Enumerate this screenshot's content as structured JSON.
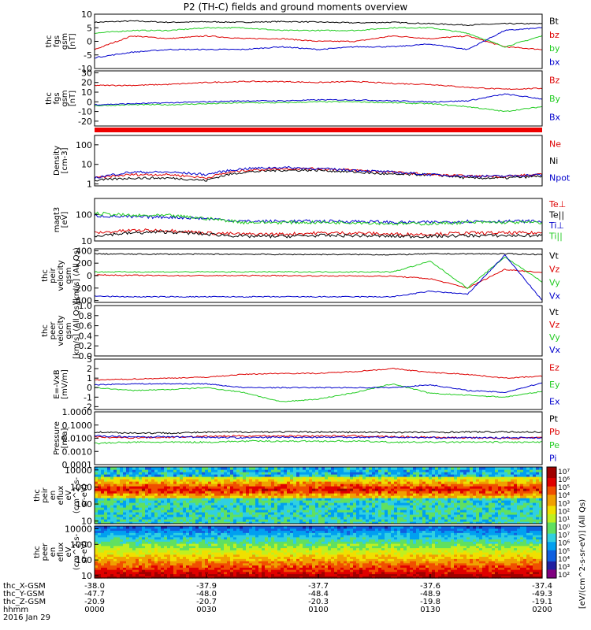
{
  "title": "P2 (TH-C) fields and ground moments overview",
  "colors": {
    "black": "#000000",
    "red": "#dd0000",
    "green": "#22cc22",
    "blue": "#0000cc"
  },
  "panels": [
    {
      "id": "fgs",
      "ylabel": [
        "thc",
        "fgs",
        "gsm",
        "[nT]"
      ],
      "ticks": [
        "10",
        "5",
        "0",
        "-5",
        "-10"
      ],
      "tick_values": [
        10,
        5,
        0,
        -5,
        -10
      ],
      "ylim": [
        -10,
        10
      ],
      "legend": [
        {
          "text": "Bt",
          "color": "#000000"
        },
        {
          "text": "bz",
          "color": "#dd0000"
        },
        {
          "text": "by",
          "color": "#22cc22"
        },
        {
          "text": "bx",
          "color": "#0000cc"
        }
      ],
      "series": [
        {
          "name": "Bt",
          "color": "#000000",
          "values": [
            7,
            7.5,
            7,
            7.2,
            7,
            7.3,
            7.1,
            6.8,
            7,
            6.5,
            6,
            6.5,
            6.5
          ]
        },
        {
          "name": "bz",
          "color": "#dd0000",
          "values": [
            -3,
            2,
            1,
            2,
            1,
            1,
            0,
            0,
            2,
            1,
            2,
            -2,
            -3
          ]
        },
        {
          "name": "by",
          "color": "#22cc22",
          "values": [
            3,
            4,
            4,
            5,
            5,
            4,
            4,
            4,
            5,
            5,
            3,
            -2,
            2
          ]
        },
        {
          "name": "bx",
          "color": "#0000cc",
          "values": [
            -6,
            -4,
            -3,
            -3,
            -3,
            -2,
            -3,
            -2,
            -2,
            -1,
            -3,
            4,
            5
          ]
        }
      ]
    },
    {
      "id": "fgs2",
      "ylabel": [
        "thc",
        "fgs",
        "gsm",
        "[nT]"
      ],
      "ticks": [
        "30",
        "20",
        "10",
        "0",
        "-10",
        "-20"
      ],
      "tick_values": [
        30,
        20,
        10,
        0,
        -10,
        -20
      ],
      "ylim": [
        -25,
        32
      ],
      "legend": [
        {
          "text": "Bz",
          "color": "#dd0000"
        },
        {
          "text": "By",
          "color": "#22cc22"
        },
        {
          "text": "Bx",
          "color": "#0000cc"
        }
      ],
      "series": [
        {
          "name": "Bz",
          "color": "#dd0000",
          "values": [
            17,
            17,
            18,
            20,
            21,
            21,
            20,
            21,
            19,
            18,
            15,
            13,
            14
          ]
        },
        {
          "name": "By",
          "color": "#22cc22",
          "values": [
            -4,
            -3,
            -3,
            -2,
            -1,
            -1,
            0,
            0,
            -1,
            -2,
            -5,
            -10,
            -5
          ]
        },
        {
          "name": "Bx",
          "color": "#0000cc",
          "values": [
            -3,
            -2,
            -1,
            0,
            1,
            1,
            2,
            2,
            1,
            0,
            1,
            8,
            3
          ]
        }
      ]
    },
    {
      "id": "density",
      "ylabel": [
        "Density",
        "[cm-3]"
      ],
      "ticks": [
        "100",
        "10",
        "1"
      ],
      "tick_values": [
        100,
        10,
        1
      ],
      "log": true,
      "ylim": [
        0.8,
        300
      ],
      "legend": [
        {
          "text": "Ne",
          "color": "#dd0000"
        },
        {
          "text": "Ni",
          "color": "#000000"
        },
        {
          "text": "Npot",
          "color": "#0000cc"
        }
      ],
      "series": [
        {
          "name": "Ni",
          "color": "#000000",
          "values": [
            1.5,
            2,
            2,
            1.5,
            4,
            5,
            5,
            4,
            3,
            3,
            2,
            2,
            2.5
          ]
        },
        {
          "name": "Ne",
          "color": "#dd0000",
          "values": [
            2,
            3,
            3,
            2,
            5,
            6,
            6,
            5,
            4,
            3,
            2.5,
            2.5,
            3
          ]
        },
        {
          "name": "Npot",
          "color": "#0000cc",
          "values": [
            2,
            4,
            4,
            3,
            6,
            7,
            6,
            5,
            4,
            3,
            2.5,
            2.5,
            3
          ]
        }
      ]
    },
    {
      "id": "temp",
      "ylabel": [
        "magt3",
        "[eV]"
      ],
      "ticks": [
        "100",
        "10"
      ],
      "tick_values": [
        100,
        10
      ],
      "log": true,
      "ylim": [
        10,
        400
      ],
      "legend": [
        {
          "text": "Te⊥",
          "color": "#dd0000"
        },
        {
          "text": "Te||",
          "color": "#000000"
        },
        {
          "text": "Ti⊥",
          "color": "#0000cc"
        },
        {
          "text": "Ti||",
          "color": "#22cc22"
        }
      ],
      "series": [
        {
          "name": "Te⊥",
          "color": "#dd0000",
          "values": [
            20,
            25,
            25,
            20,
            18,
            18,
            20,
            20,
            18,
            18,
            20,
            20,
            20
          ]
        },
        {
          "name": "Te||",
          "color": "#000000",
          "values": [
            16,
            20,
            22,
            18,
            15,
            15,
            16,
            16,
            15,
            15,
            16,
            16,
            16
          ]
        },
        {
          "name": "Ti⊥",
          "color": "#0000cc",
          "values": [
            90,
            80,
            80,
            70,
            55,
            55,
            55,
            55,
            50,
            50,
            55,
            55,
            55
          ]
        },
        {
          "name": "Ti||",
          "color": "#22cc22",
          "values": [
            110,
            90,
            90,
            70,
            50,
            50,
            50,
            50,
            45,
            45,
            50,
            50,
            50
          ]
        }
      ]
    },
    {
      "id": "peir",
      "ylabel": [
        "thc",
        "peir",
        "velocity",
        "gsm",
        "[km/s] (All Qs)"
      ],
      "ticks": [
        "400",
        "200",
        "0",
        "-200",
        "-400"
      ],
      "tick_values": [
        400,
        200,
        0,
        -200,
        -400
      ],
      "ylim": [
        -430,
        430
      ],
      "legend": [
        {
          "text": "Vt",
          "color": "#000000"
        },
        {
          "text": "Vz",
          "color": "#dd0000"
        },
        {
          "text": "Vy",
          "color": "#22cc22"
        },
        {
          "text": "Vx",
          "color": "#0000cc"
        }
      ],
      "series": [
        {
          "name": "Vt",
          "color": "#000000",
          "values": [
            350,
            345,
            345,
            345,
            345,
            340,
            340,
            340,
            335,
            350,
            350,
            350,
            340
          ]
        },
        {
          "name": "Vz",
          "color": "#dd0000",
          "values": [
            10,
            5,
            0,
            0,
            0,
            0,
            -5,
            -5,
            -10,
            -50,
            -200,
            100,
            50
          ]
        },
        {
          "name": "Vy",
          "color": "#22cc22",
          "values": [
            60,
            60,
            60,
            60,
            60,
            60,
            60,
            60,
            60,
            230,
            -200,
            300,
            -100
          ]
        },
        {
          "name": "Vx",
          "color": "#0000cc",
          "values": [
            -330,
            -340,
            -340,
            -340,
            -340,
            -340,
            -340,
            -340,
            -340,
            -250,
            -300,
            330,
            -400
          ]
        }
      ]
    },
    {
      "id": "peer",
      "ylabel": [
        "thc",
        "peer",
        "velocity",
        "gsm",
        "[km/s] (All Qs)"
      ],
      "ticks": [
        "1.0",
        "0.8",
        "0.6",
        "0.4",
        "0.2",
        "0.0"
      ],
      "tick_values": [
        1.0,
        0.8,
        0.6,
        0.4,
        0.2,
        0.0
      ],
      "ylim": [
        0,
        1
      ],
      "legend": [
        {
          "text": "Vt",
          "color": "#000000"
        },
        {
          "text": "Vz",
          "color": "#dd0000"
        },
        {
          "text": "Vy",
          "color": "#22cc22"
        },
        {
          "text": "Vx",
          "color": "#0000cc"
        }
      ],
      "series": []
    },
    {
      "id": "efield",
      "ylabel": [
        "E=-VxB",
        "[mV/m]"
      ],
      "ticks": [
        "3",
        "2",
        "1",
        "0",
        "-1",
        "-2"
      ],
      "tick_values": [
        3,
        2,
        1,
        0,
        -1,
        -2
      ],
      "ylim": [
        -2.3,
        3
      ],
      "legend": [
        {
          "text": "Ez",
          "color": "#dd0000"
        },
        {
          "text": "Ey",
          "color": "#22cc22"
        },
        {
          "text": "Ex",
          "color": "#0000cc"
        }
      ],
      "series": [
        {
          "name": "Ez",
          "color": "#dd0000",
          "values": [
            0.8,
            0.9,
            1.0,
            1.1,
            1.4,
            1.5,
            1.5,
            1.7,
            2.0,
            1.6,
            1.4,
            1.0,
            1.2
          ]
        },
        {
          "name": "Ey",
          "color": "#22cc22",
          "values": [
            0,
            -0.3,
            -0.2,
            0,
            -0.5,
            -1.5,
            -1.2,
            -0.5,
            0.4,
            -0.6,
            -0.8,
            -1.0,
            -0.4
          ]
        },
        {
          "name": "Ex",
          "color": "#0000cc",
          "values": [
            0.3,
            0.4,
            0.4,
            0.4,
            0,
            0,
            0,
            0,
            0,
            0.3,
            -0.3,
            -0.5,
            0.5
          ]
        }
      ]
    },
    {
      "id": "pressure",
      "ylabel": [
        "Pressure",
        "[nPa]"
      ],
      "ticks": [
        "1.0000",
        "0.1000",
        "0.0100",
        "0.0010",
        "0.0001"
      ],
      "tick_values": [
        1,
        0.1,
        0.01,
        0.001,
        0.0001
      ],
      "log": true,
      "ylim": [
        0.0001,
        1
      ],
      "legend": [
        {
          "text": "Pt",
          "color": "#000000"
        },
        {
          "text": "Pb",
          "color": "#dd0000"
        },
        {
          "text": "Pe",
          "color": "#22cc22"
        },
        {
          "text": "Pi",
          "color": "#0000cc"
        }
      ],
      "series": [
        {
          "name": "Pt",
          "color": "#000000",
          "values": [
            0.03,
            0.025,
            0.025,
            0.028,
            0.03,
            0.03,
            0.03,
            0.028,
            0.028,
            0.028,
            0.03,
            0.03,
            0.03
          ]
        },
        {
          "name": "Pb",
          "color": "#dd0000",
          "values": [
            0.012,
            0.011,
            0.012,
            0.014,
            0.015,
            0.015,
            0.015,
            0.015,
            0.013,
            0.012,
            0.011,
            0.01,
            0.011
          ]
        },
        {
          "name": "Pi",
          "color": "#0000cc",
          "values": [
            0.015,
            0.013,
            0.013,
            0.012,
            0.011,
            0.012,
            0.012,
            0.012,
            0.012,
            0.011,
            0.011,
            0.011,
            0.011
          ]
        },
        {
          "name": "Pe",
          "color": "#22cc22",
          "values": [
            0.004,
            0.005,
            0.005,
            0.005,
            0.006,
            0.006,
            0.006,
            0.006,
            0.005,
            0.005,
            0.005,
            0.005,
            0.005
          ]
        }
      ]
    },
    {
      "id": "peir_en",
      "ylabel": [
        "thc",
        "peir",
        "en",
        "eflux",
        "eV",
        "(cm^2-s-",
        "sr-eV)"
      ],
      "ticks": [
        "10000",
        "1000",
        "100",
        "10"
      ],
      "tick_values": [
        10000,
        1000,
        100,
        10
      ],
      "log": true,
      "ylim": [
        7,
        15000
      ],
      "spectrogram": true,
      "peak": 500
    },
    {
      "id": "peer_en",
      "ylabel": [
        "thc",
        "peer",
        "en",
        "eflux",
        "eV",
        "(cm^2-s-",
        "sr-eV)"
      ],
      "ticks": [
        "10000",
        "1000",
        "100",
        "10"
      ],
      "tick_values": [
        10000,
        1000,
        100,
        10
      ],
      "log": true,
      "ylim": [
        7,
        15000
      ],
      "spectrogram": true,
      "peak": 15
    }
  ],
  "colorbar": {
    "ticks": [
      "10⁷",
      "10⁶",
      "10⁵",
      "10⁴",
      "10³",
      "10²",
      "10¹",
      "10⁰",
      "10⁷",
      "10⁶",
      "10⁵",
      "10⁴",
      "10³",
      "10²"
    ],
    "label": "[eV/(cm^2-s-sr-eV)] (All Qs)"
  },
  "xaxis": {
    "tick_labels": [
      {
        "label": "thc_X-GSM",
        "values": [
          "-38.0",
          "-37.9",
          "-37.7",
          "-37.6",
          "-37.4"
        ]
      },
      {
        "label": "thc_Y-GSM",
        "values": [
          "-47.7",
          "-48.0",
          "-48.4",
          "-48.9",
          "-49.3"
        ]
      },
      {
        "label": "thc_Z-GSM",
        "values": [
          "-20.9",
          "-20.7",
          "-20.3",
          "-19.8",
          "-19.1"
        ]
      },
      {
        "label": "hhmm",
        "values": [
          "0000",
          "0030",
          "0100",
          "0130",
          "0200"
        ]
      }
    ],
    "date": "2016 Jan 29"
  },
  "chart_data": {
    "type": "line",
    "title": "P2 (TH-C) fields and ground moments overview",
    "x_times": [
      "0000",
      "0010",
      "0020",
      "0030",
      "0040",
      "0050",
      "0100",
      "0110",
      "0120",
      "0130",
      "0140",
      "0150",
      "0200"
    ],
    "x_tick_labels": [
      "0000",
      "0030",
      "0100",
      "0130",
      "0200"
    ],
    "note": ""
  }
}
